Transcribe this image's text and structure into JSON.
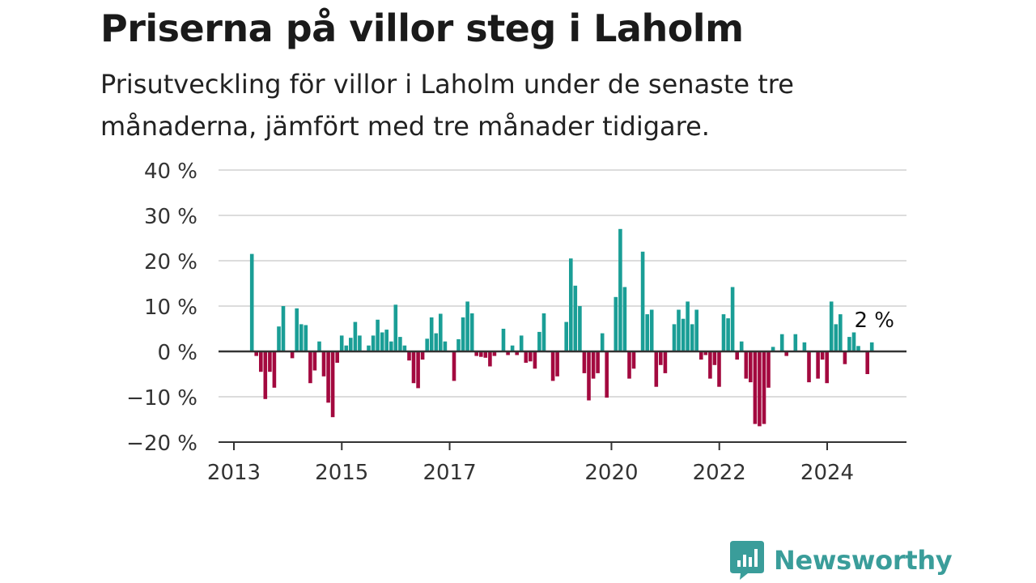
{
  "header": {
    "title": "Priserna på villor steg i Laholm",
    "subtitle": "Prisutveckling för villor i Laholm under de senaste tre månaderna, jämfört med tre månader tidigare."
  },
  "brand": {
    "name": "Newsworthy",
    "color": "#3a9d9a"
  },
  "chart_data": {
    "type": "bar",
    "title": "Priserna på villor steg i Laholm",
    "subtitle": "Prisutveckling för villor i Laholm under de senaste tre månaderna, jämfört med tre månader tidigare.",
    "xlabel": "",
    "ylabel": "",
    "ylim": [
      -20,
      40
    ],
    "yticks": [
      "40 %",
      "30 %",
      "20 %",
      "10 %",
      "0 %",
      "−10 %",
      "−20 %"
    ],
    "ytick_values": [
      40,
      30,
      20,
      10,
      0,
      -10,
      -20
    ],
    "xticks": [
      "2013",
      "2015",
      "2017",
      "2020",
      "2022",
      "2024"
    ],
    "xtick_values": [
      2013,
      2015,
      2017,
      2020,
      2022,
      2024
    ],
    "x_start": 2013.333,
    "x_step": 0.0833,
    "annotation": "2 %",
    "positive_color": "#1a9e96",
    "negative_color": "#a3093f",
    "grid": true,
    "values": [
      21.5,
      -1,
      -4.5,
      -10.5,
      -4.5,
      -8,
      5.5,
      10,
      0,
      -1.5,
      9.5,
      6,
      5.8,
      -7,
      -4.2,
      2.2,
      -5.5,
      -11.3,
      -14.5,
      -2.5,
      3.5,
      1.3,
      3,
      6.5,
      3.5,
      0,
      1.3,
      3.5,
      7,
      4.2,
      4.8,
      2.2,
      10.3,
      3.2,
      1.3,
      -2,
      -7,
      -8.1,
      -1.8,
      2.8,
      7.5,
      4,
      8.3,
      2.2,
      0,
      -6.5,
      2.7,
      7.5,
      11,
      8.4,
      -1,
      -1.2,
      -1.4,
      -3.3,
      -1,
      0,
      5,
      -0.8,
      1.3,
      -0.8,
      3.5,
      -2.5,
      -2.2,
      -3.8,
      4.3,
      8.4,
      -0.2,
      -6.5,
      -5.5,
      0,
      6.5,
      20.5,
      14.5,
      10,
      -4.8,
      -10.8,
      -6,
      -4.8,
      4,
      -10.2,
      0,
      12,
      27,
      14.2,
      -6,
      -3.8,
      0,
      22,
      8.2,
      9.2,
      -7.8,
      -3,
      -4.8,
      0,
      6,
      9.2,
      7.2,
      11,
      6,
      9.2,
      -1.8,
      -0.8,
      -6,
      -3,
      -7.8,
      8.2,
      7.3,
      14.2,
      -1.8,
      2.2,
      -6,
      -6.8,
      -16,
      -16.5,
      -16,
      -8,
      1,
      0,
      3.8,
      -1,
      0,
      3.8,
      0,
      2,
      -6.8,
      0,
      -6,
      -1.8,
      -7,
      11,
      6,
      8.2,
      -2.8,
      3.2,
      4.2,
      1.2,
      0,
      -5,
      2
    ]
  }
}
